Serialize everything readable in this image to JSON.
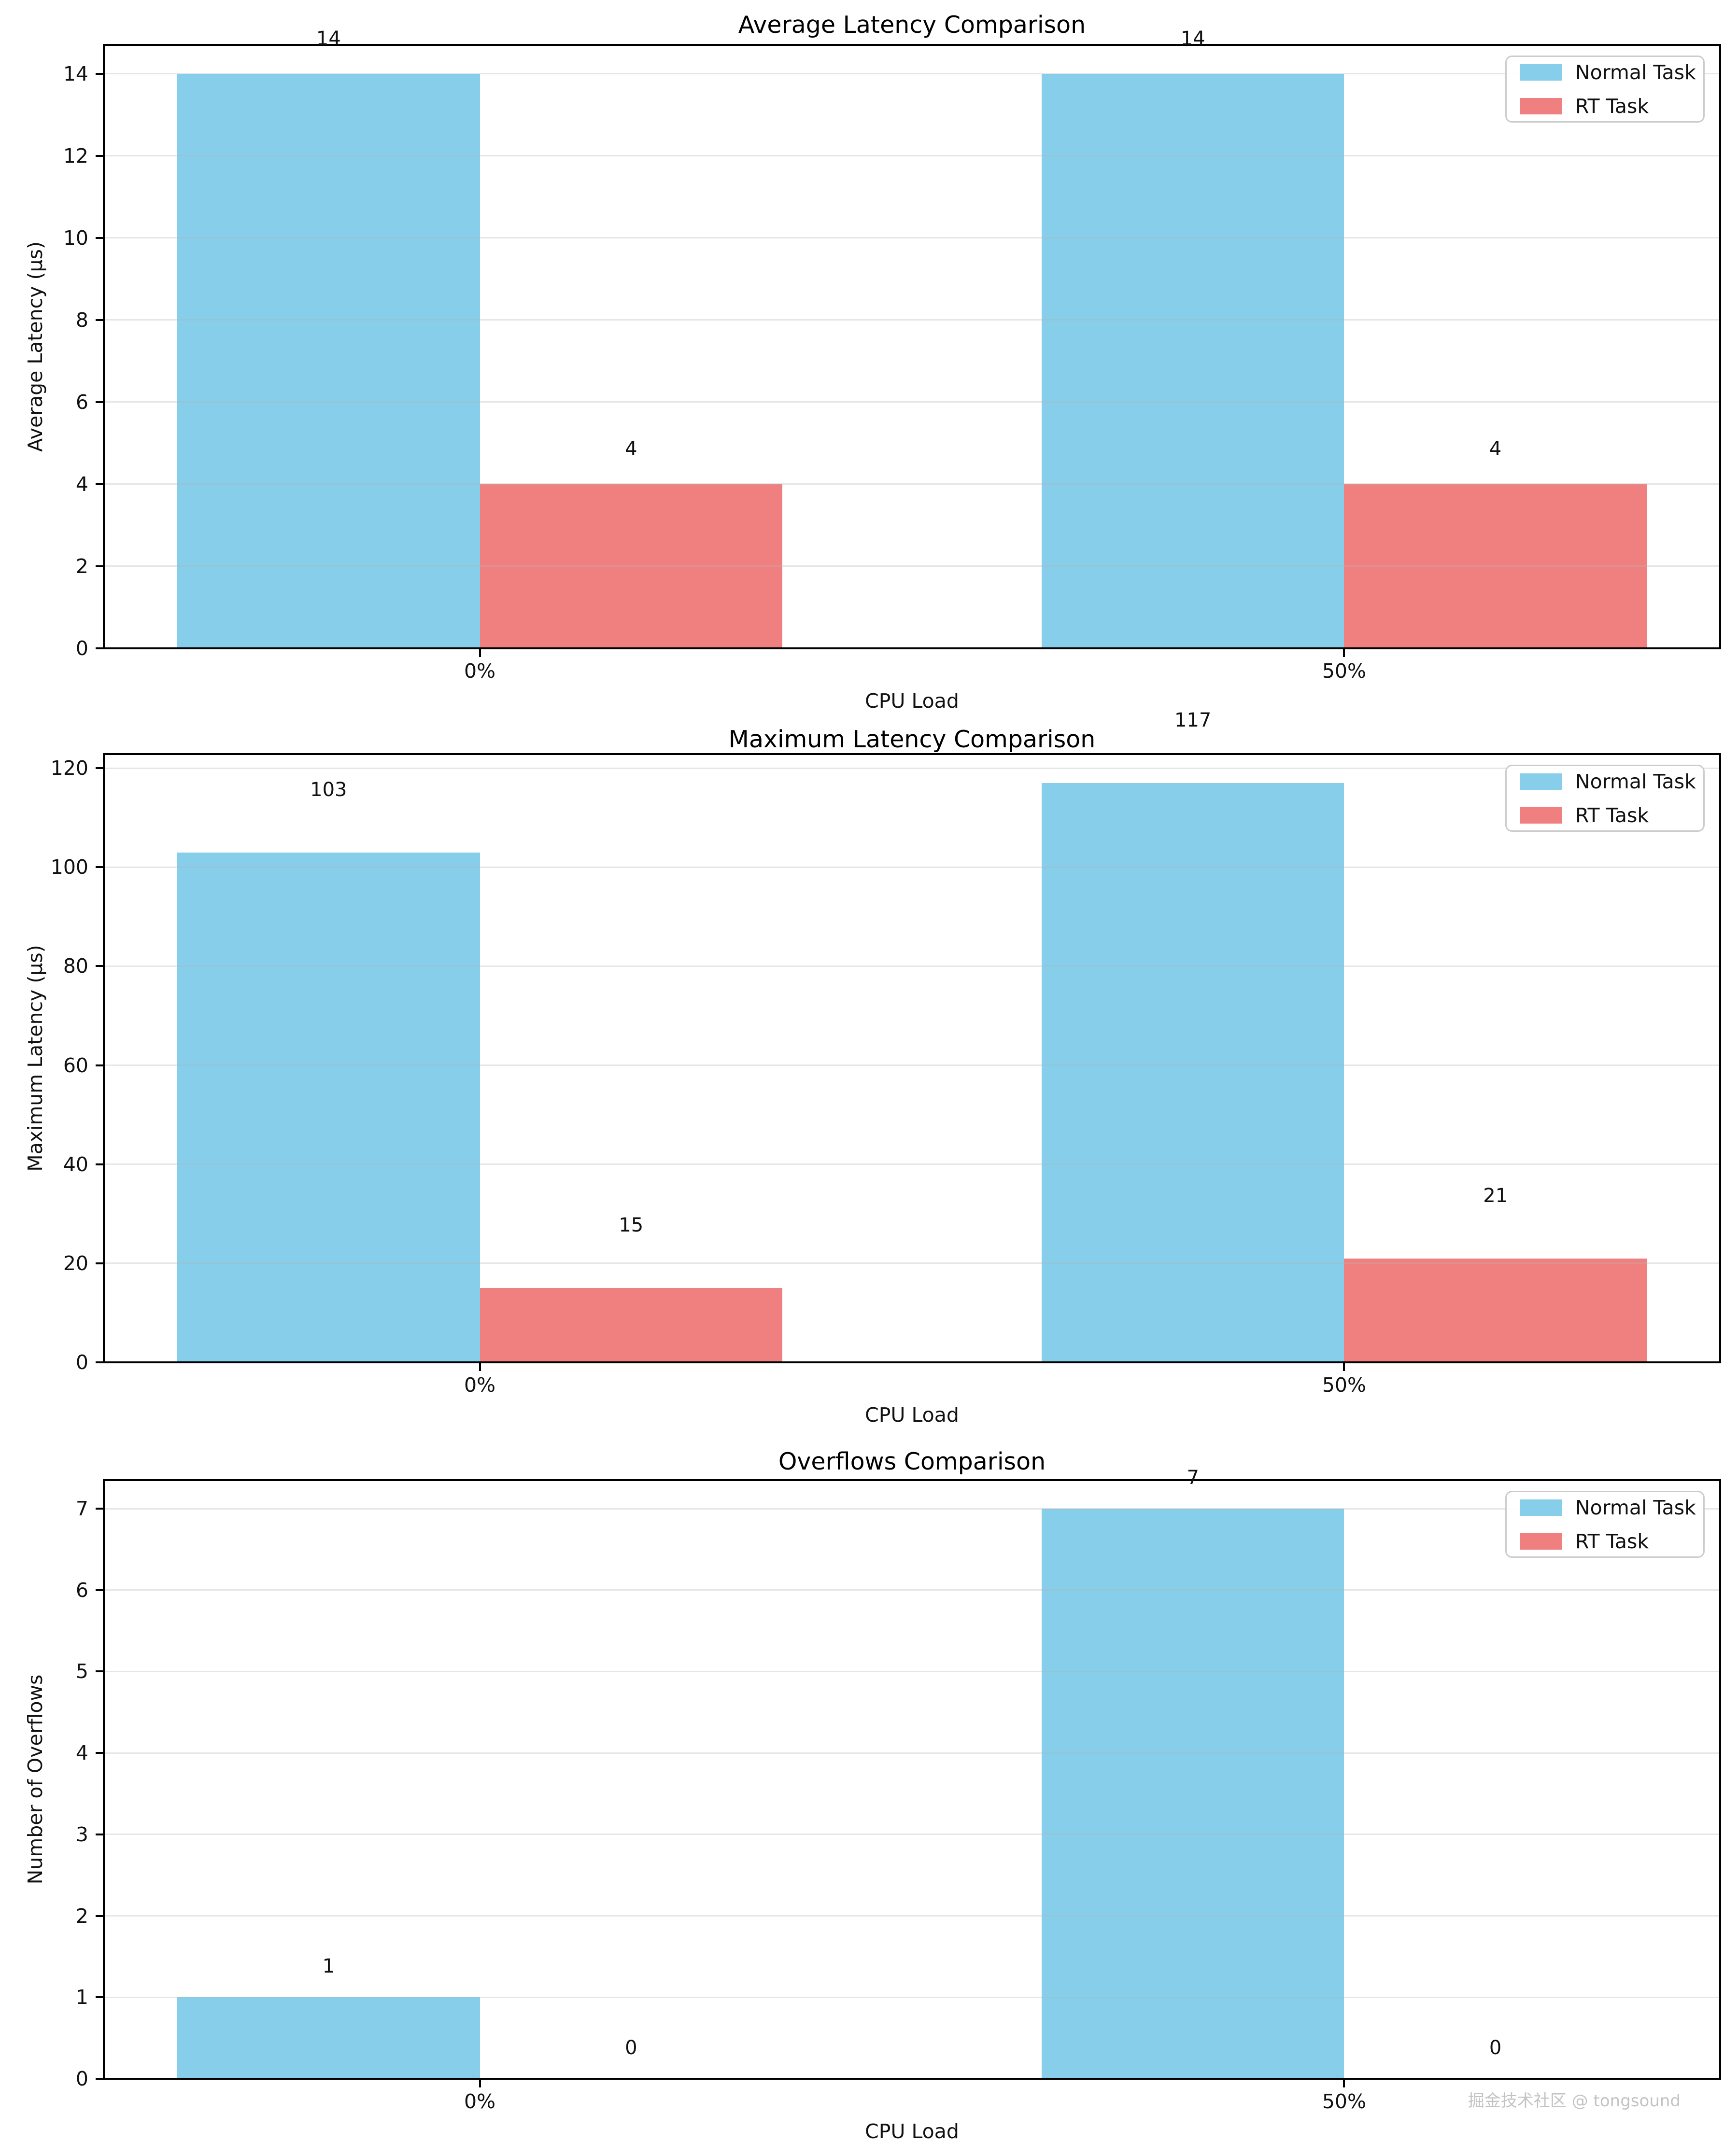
{
  "watermark": "掘金技术社区 @ tongsound",
  "chart_data": [
    {
      "type": "bar",
      "title": "Average Latency Comparison",
      "xlabel": "CPU Load",
      "ylabel": "Average Latency (μs)",
      "categories": [
        "0%",
        "50%"
      ],
      "series": [
        {
          "name": "Normal Task",
          "color": "#87CEEB",
          "values": [
            14,
            14
          ]
        },
        {
          "name": "RT Task",
          "color": "#F08080",
          "values": [
            4,
            4
          ]
        }
      ],
      "ylim": [
        0,
        14.7
      ],
      "yticks": [
        0,
        2,
        4,
        6,
        8,
        10,
        12,
        14
      ],
      "grid": true,
      "legend_position": "upper right",
      "label_offset": 0.6
    },
    {
      "type": "bar",
      "title": "Maximum Latency Comparison",
      "xlabel": "CPU Load",
      "ylabel": "Maximum Latency (μs)",
      "categories": [
        "0%",
        "50%"
      ],
      "series": [
        {
          "name": "Normal Task",
          "color": "#87CEEB",
          "values": [
            103,
            117
          ]
        },
        {
          "name": "RT Task",
          "color": "#F08080",
          "values": [
            15,
            21
          ]
        }
      ],
      "ylim": [
        0,
        122.85
      ],
      "yticks": [
        0,
        20,
        40,
        60,
        80,
        100,
        120
      ],
      "grid": true,
      "legend_position": "upper right",
      "label_offset": 10.5
    },
    {
      "type": "bar",
      "title": "Overflows Comparison",
      "xlabel": "CPU Load",
      "ylabel": "Number of Overflows",
      "categories": [
        "0%",
        "50%"
      ],
      "series": [
        {
          "name": "Normal Task",
          "color": "#87CEEB",
          "values": [
            1,
            7
          ]
        },
        {
          "name": "RT Task",
          "color": "#F08080",
          "values": [
            0,
            0
          ]
        }
      ],
      "ylim": [
        0,
        7.35
      ],
      "yticks": [
        0,
        1,
        2,
        3,
        4,
        5,
        6,
        7
      ],
      "grid": true,
      "legend_position": "upper right",
      "label_offset": 0.25
    }
  ]
}
